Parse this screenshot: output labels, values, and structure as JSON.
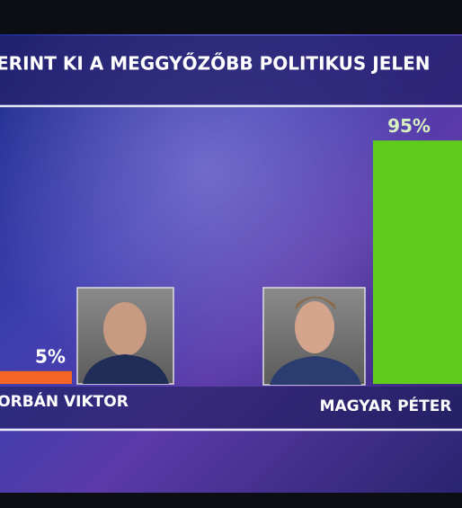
{
  "chart_data": {
    "type": "bar",
    "title": "ERINT KI A MEGGYŐZŐBB POLITIKUS JELEN",
    "categories": [
      "ORBÁN VIKTOR",
      "MAGYAR PÉTER"
    ],
    "values": [
      5,
      95
    ],
    "value_labels": [
      "5%",
      "95%"
    ],
    "colors": [
      "#f26522",
      "#5fcc1c"
    ]
  }
}
